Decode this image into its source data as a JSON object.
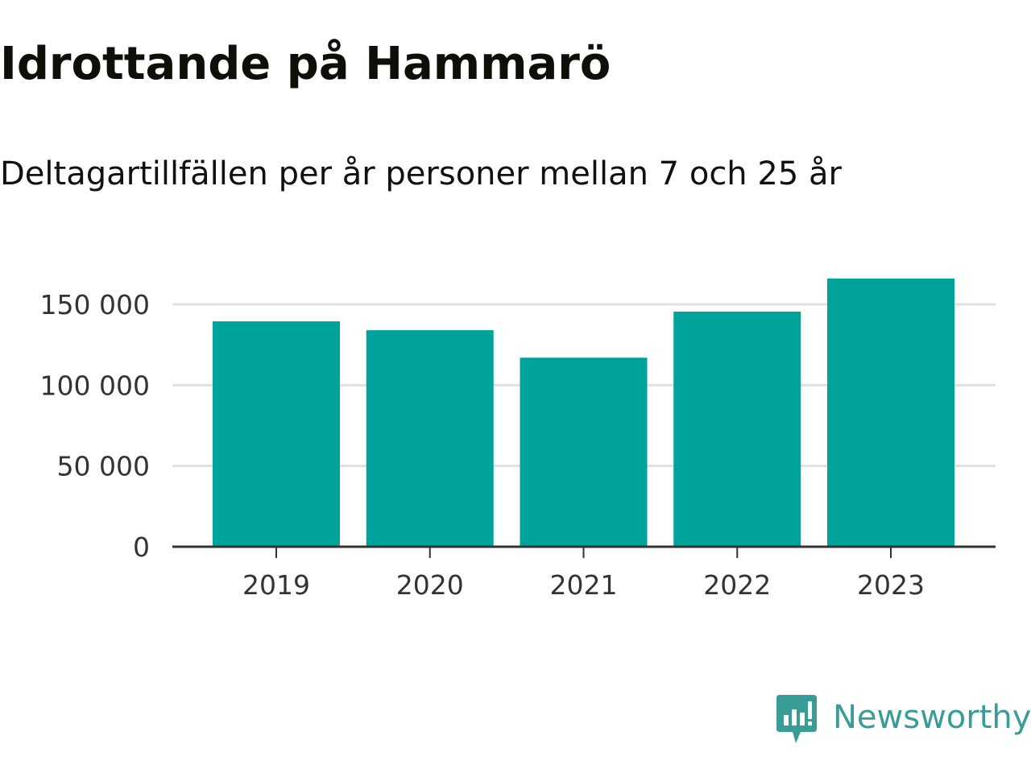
{
  "header": {
    "title": "Idrottande på Hammarö",
    "subtitle": "Deltagartillfällen per år personer mellan 7 och 25 år"
  },
  "brand": {
    "name": "Newsworthy",
    "icon": "newsworthy-logo-icon",
    "color": "#3a9c97"
  },
  "chart_data": {
    "type": "bar",
    "title": "Idrottande på Hammarö",
    "subtitle": "Deltagartillfällen per år personer mellan 7 och 25 år",
    "categories": [
      "2019",
      "2020",
      "2021",
      "2022",
      "2023"
    ],
    "values": [
      139500,
      134000,
      117000,
      145500,
      166000
    ],
    "ylim": [
      0,
      175000
    ],
    "yticks": [
      0,
      50000,
      100000,
      150000
    ],
    "ytick_labels": [
      "0",
      "50 000",
      "100 000",
      "150 000"
    ],
    "xlabel": "",
    "ylabel": "",
    "grid": true,
    "legend": "none",
    "bar_color": "#00a39a",
    "grid_color": "#e0e0e0",
    "axis_color": "#333333"
  }
}
